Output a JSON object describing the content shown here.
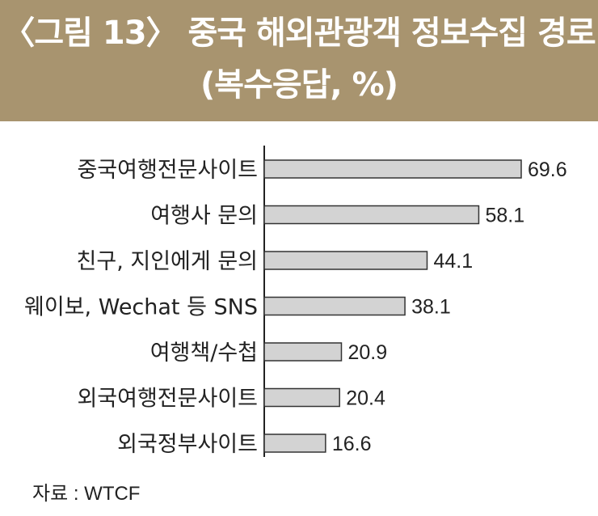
{
  "title": {
    "line1": "〈그림 13〉 중국 해외관광객 정보수집 경로",
    "line2": "(복수응답, %)"
  },
  "source": "자료 : WTCF",
  "colors": {
    "header_band": "#a8946f",
    "bar_fill": "#d3d3d3",
    "bar_stroke": "#333333",
    "axis": "#222222",
    "text": "#222222"
  },
  "chart_data": {
    "type": "bar",
    "orientation": "horizontal",
    "categories": [
      "중국여행전문사이트",
      "여행사 문의",
      "친구, 지인에게 문의",
      "웨이보, Wechat 등 SNS",
      "여행책/수첩",
      "외국여행전문사이트",
      "외국정부사이트"
    ],
    "values": [
      69.6,
      58.1,
      44.1,
      38.1,
      20.9,
      20.4,
      16.6
    ],
    "value_labels": [
      "69.6",
      "58.1",
      "44.1",
      "38.1",
      "20.9",
      "20.4",
      "16.6"
    ],
    "xlim": [
      0,
      69.6
    ],
    "grid": false,
    "legend": "none"
  }
}
